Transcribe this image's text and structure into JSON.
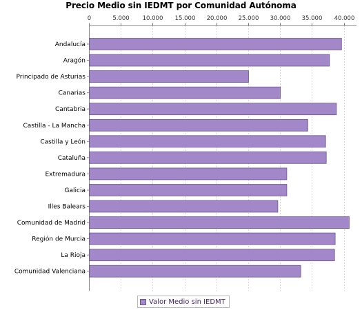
{
  "chart_data": {
    "type": "bar",
    "orientation": "horizontal",
    "title": "Precio Medio sin IEDMT por Comunidad Autónoma",
    "xlabel": "",
    "ylabel": "",
    "categories": [
      "Andalucía",
      "Aragón",
      "Principado de Asturias",
      "Canarias",
      "Cantabria",
      "Castilla - La Mancha",
      "Castilla y León",
      "Cataluña",
      "Extremadura",
      "Galicia",
      "Illes Balears",
      "Comunidad de Madrid",
      "Región de Murcia",
      "La Rioja",
      "Comunidad Valenciana"
    ],
    "series": [
      {
        "name": "Valor Medio sin IEDMT",
        "values": [
          39600,
          37700,
          25000,
          30000,
          38800,
          34300,
          37100,
          37200,
          31000,
          31000,
          29600,
          40800,
          38600,
          38500,
          33200
        ]
      }
    ],
    "xlim": [
      0,
      42000
    ],
    "x_ticks": [
      0,
      5000,
      10000,
      15000,
      20000,
      25000,
      30000,
      35000,
      40000
    ],
    "x_tick_labels": [
      "0",
      "5.000",
      "10.000",
      "15.000",
      "20.000",
      "25.000",
      "30.000",
      "35.000",
      "40.000"
    ],
    "x_axis_position": "top",
    "grid": true,
    "legend_position": "bottom",
    "colors": {
      "bar_fill": "#a287c9",
      "bar_stroke": "#6d5592",
      "grid": "#d8d8d8",
      "axis": "#888888",
      "legend_text": "#442266"
    }
  }
}
